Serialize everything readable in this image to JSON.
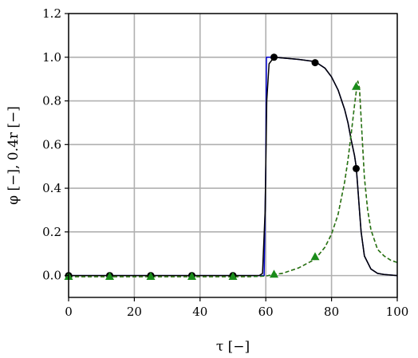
{
  "chart_data": {
    "type": "line",
    "title": "",
    "xlabel": "τ [−]",
    "ylabel": "φ [−], 0.4r [−]",
    "xlim": [
      0,
      100
    ],
    "ylim": [
      -0.1,
      1.2
    ],
    "xticks": [
      0,
      20,
      40,
      60,
      80,
      100
    ],
    "yticks": [
      0.0,
      0.2,
      0.4,
      0.6,
      0.8,
      1.0,
      1.2
    ],
    "xtick_labels": [
      "0",
      "20",
      "40",
      "60",
      "80",
      "100"
    ],
    "ytick_labels": [
      "0.0",
      "0.2",
      "0.4",
      "0.6",
      "0.8",
      "1.0",
      "1.2"
    ],
    "grid": true,
    "legend": "none",
    "series": [
      {
        "style": "solid",
        "color": "#0000cc",
        "x": [
          0,
          59.5,
          60.0,
          60.2,
          62.5,
          70,
          75,
          78,
          80,
          82,
          84,
          85,
          86,
          87,
          87.5,
          88,
          88.5,
          89,
          90,
          92,
          94,
          96,
          100
        ],
        "y": [
          0,
          0,
          0.5,
          1.0,
          1.0,
          0.99,
          0.98,
          0.95,
          0.91,
          0.85,
          0.76,
          0.7,
          0.62,
          0.55,
          0.5,
          0.4,
          0.3,
          0.2,
          0.09,
          0.03,
          0.01,
          0.005,
          0.0
        ]
      },
      {
        "style": "solid",
        "color": "#000000",
        "marker": "circle",
        "marker_color": "#000000",
        "x": [
          0,
          58,
          59,
          59.8,
          60.3,
          61,
          62.5,
          70,
          75,
          78,
          80,
          82,
          84,
          85,
          86,
          87,
          87.5,
          88,
          88.5,
          89,
          90,
          92,
          94,
          96,
          100
        ],
        "y": [
          0,
          0,
          0.01,
          0.3,
          0.8,
          0.97,
          1.0,
          0.99,
          0.98,
          0.95,
          0.91,
          0.85,
          0.76,
          0.7,
          0.62,
          0.55,
          0.5,
          0.4,
          0.3,
          0.2,
          0.09,
          0.03,
          0.01,
          0.005,
          0.0
        ],
        "markers_x": [
          0,
          12.5,
          25,
          37.5,
          50,
          62.5,
          75,
          87.5
        ],
        "markers_y": [
          0,
          0,
          0,
          0,
          0,
          1.0,
          0.975,
          0.49
        ]
      },
      {
        "style": "dashed",
        "color": "#cc3300",
        "x": [
          0,
          55,
          60,
          62.5,
          65,
          70,
          75,
          78,
          80,
          82,
          84,
          85,
          86,
          87,
          87.5,
          88,
          88.5,
          89,
          90,
          91,
          92,
          94,
          96,
          98,
          100
        ],
        "y": [
          -0.005,
          -0.005,
          -0.002,
          0.005,
          0.01,
          0.035,
          0.075,
          0.13,
          0.19,
          0.28,
          0.43,
          0.53,
          0.65,
          0.78,
          0.84,
          0.89,
          0.86,
          0.72,
          0.45,
          0.3,
          0.21,
          0.12,
          0.09,
          0.07,
          0.06
        ]
      },
      {
        "style": "dashed",
        "color": "#1a7a1a",
        "marker": "triangle",
        "marker_color": "#1a8c1a",
        "x": [
          0,
          55,
          60,
          62.5,
          65,
          70,
          75,
          78,
          80,
          82,
          84,
          85,
          86,
          87,
          87.5,
          88,
          88.5,
          89,
          90,
          91,
          92,
          94,
          96,
          98,
          100
        ],
        "y": [
          -0.005,
          -0.005,
          -0.002,
          0.005,
          0.01,
          0.035,
          0.075,
          0.13,
          0.19,
          0.28,
          0.43,
          0.53,
          0.65,
          0.78,
          0.84,
          0.89,
          0.86,
          0.72,
          0.45,
          0.3,
          0.21,
          0.12,
          0.09,
          0.07,
          0.06
        ],
        "markers_x": [
          0,
          12.5,
          25,
          37.5,
          50,
          62.5,
          75,
          87.5
        ],
        "markers_y": [
          -0.005,
          -0.005,
          -0.005,
          -0.005,
          -0.005,
          0.005,
          0.085,
          0.865
        ]
      }
    ]
  }
}
